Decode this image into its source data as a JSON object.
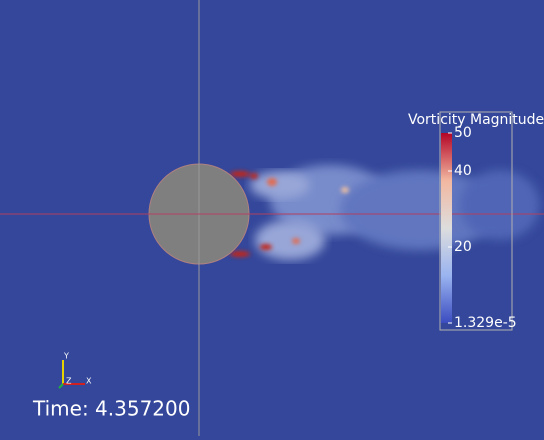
{
  "colorbar": {
    "title": "Vorticity Magnitude",
    "range": [
      1.329e-05,
      50
    ],
    "ticks": [
      50,
      40,
      20,
      {
        "value": 1.329e-05,
        "label": "1.329e-5"
      }
    ]
  },
  "time_label": "Time: 4.357200",
  "axes": {
    "y": "Y",
    "z": "Z",
    "x": "X"
  }
}
